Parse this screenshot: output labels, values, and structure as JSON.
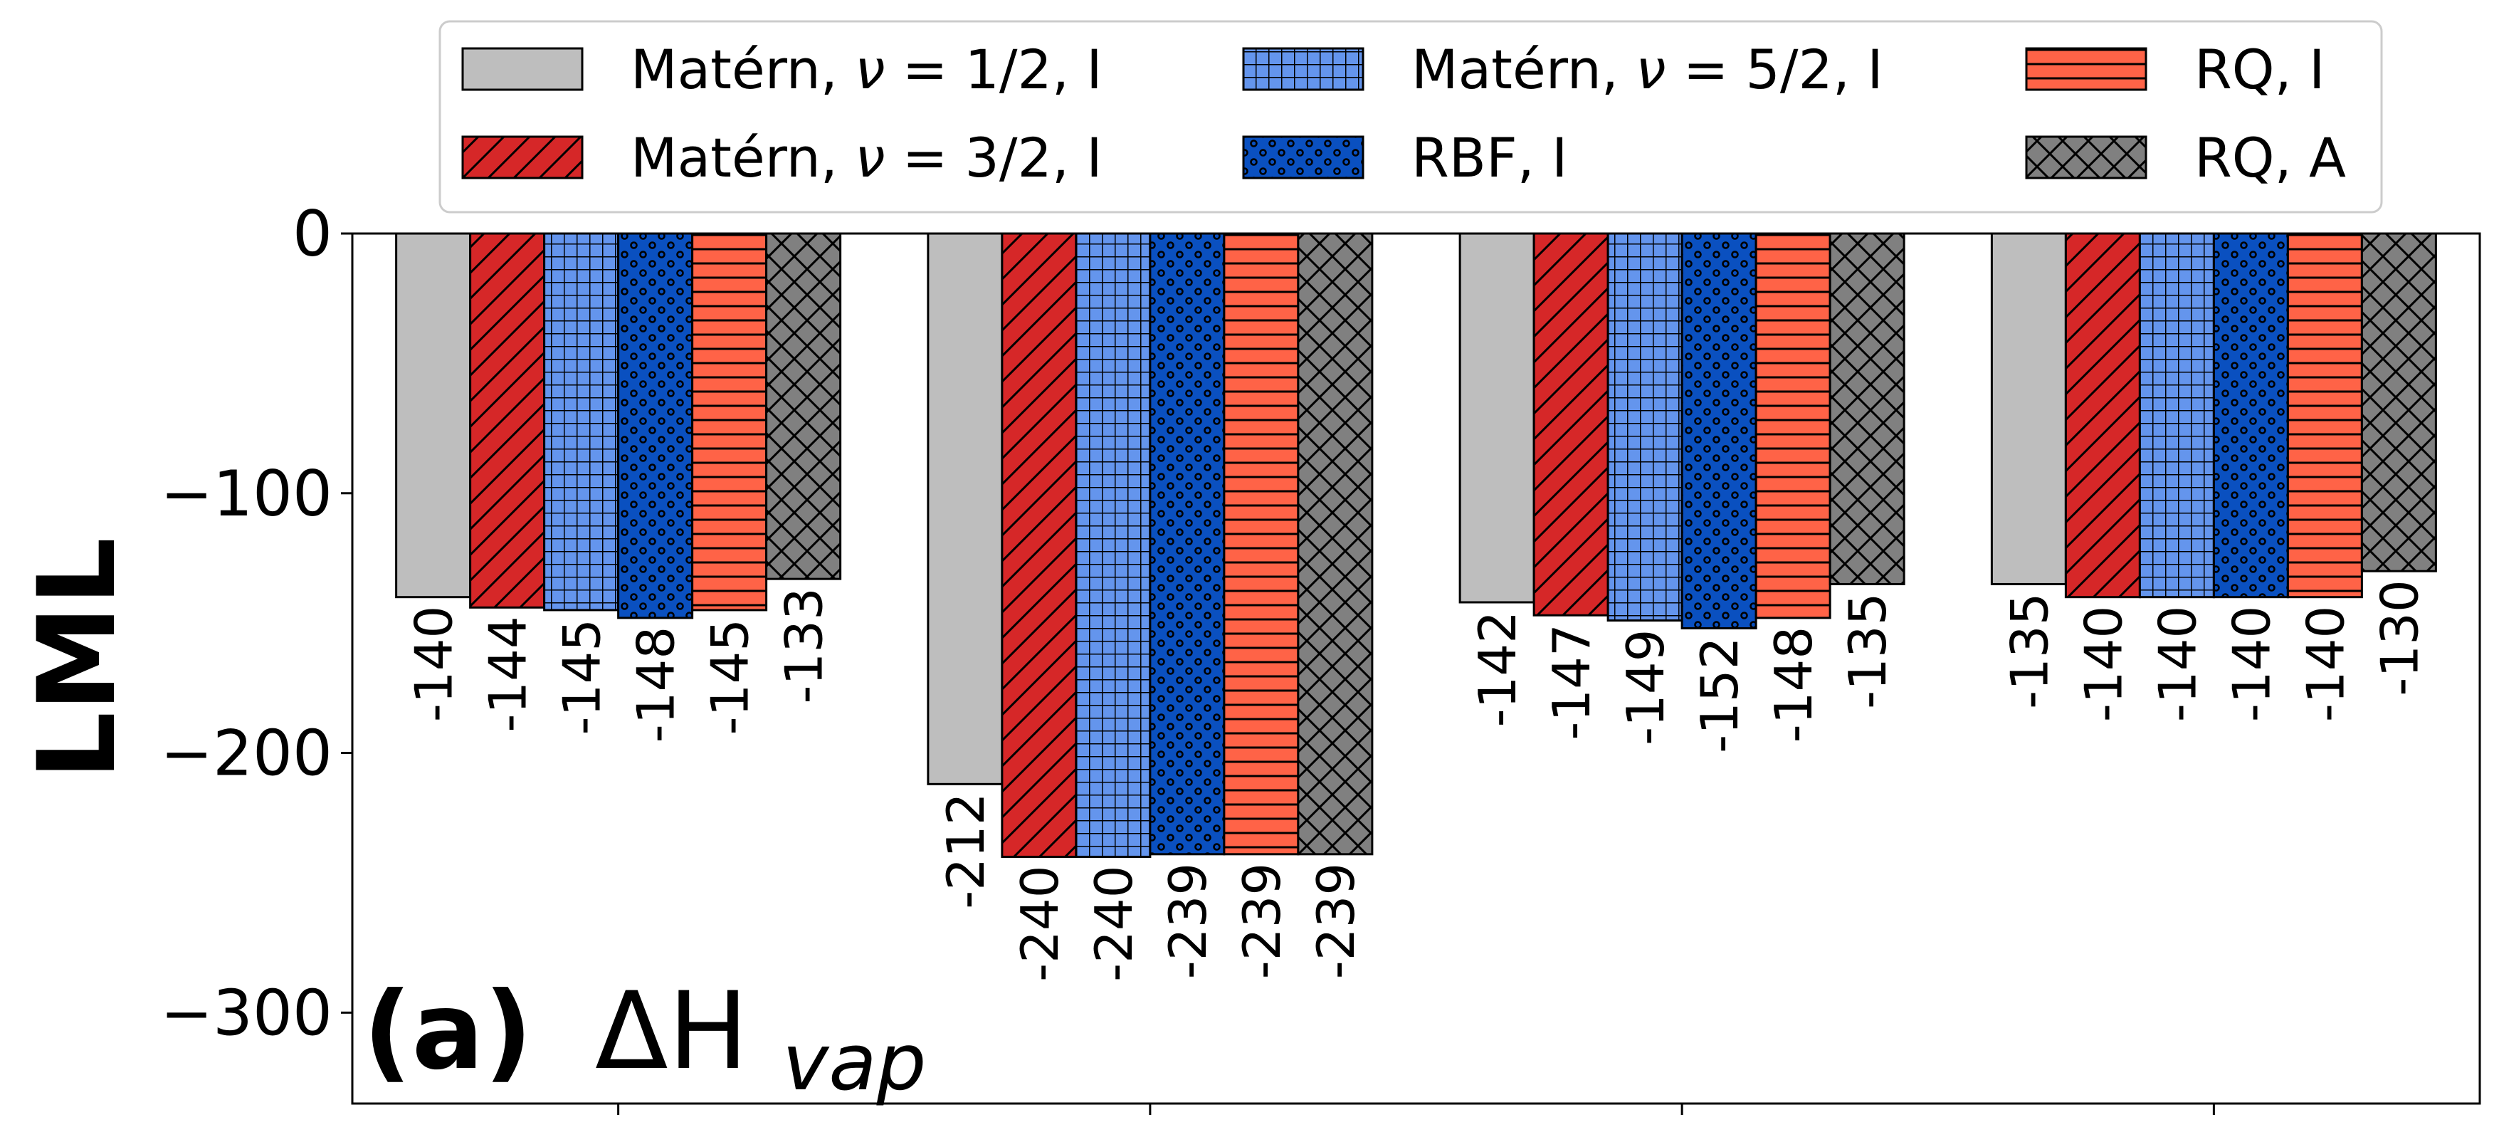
{
  "chart_data": {
    "type": "bar",
    "ylabel": "LML",
    "ylim": [
      -335,
      0
    ],
    "yticks": [
      0,
      -100,
      -200,
      -300
    ],
    "ytick_labels": [
      "0",
      "−100",
      "−200",
      "−300"
    ],
    "group_count": 4,
    "annotation": {
      "bold": "(a)",
      "symbol": "ΔH",
      "subscript": "vap"
    },
    "legend_placement": "top-center",
    "series": [
      {
        "legend": {
          "prefix": "Matérn, ",
          "italic": "ν",
          "suffix": " = 1/2, I"
        },
        "color": "#bebebe",
        "hatch": "none",
        "values": [
          -140,
          -212,
          -142,
          -135
        ],
        "labels": [
          "-140",
          "-212",
          "-142",
          "-135"
        ]
      },
      {
        "legend": {
          "prefix": "Matérn, ",
          "italic": "ν",
          "suffix": " = 3/2, I"
        },
        "color": "#d62728",
        "hatch": "diagonal",
        "values": [
          -144,
          -240,
          -147,
          -140
        ],
        "labels": [
          "-144",
          "-240",
          "-147",
          "-140"
        ]
      },
      {
        "legend": {
          "prefix": "Matérn, ",
          "italic": "ν",
          "suffix": " = 5/2, I"
        },
        "color": "#6495ed",
        "hatch": "grid",
        "values": [
          -145,
          -240,
          -149,
          -140
        ],
        "labels": [
          "-145",
          "-240",
          "-149",
          "-140"
        ]
      },
      {
        "legend": {
          "prefix": "RBF, I",
          "italic": "",
          "suffix": ""
        },
        "color": "#0a50c0",
        "hatch": "dots",
        "values": [
          -148,
          -239,
          -152,
          -140
        ],
        "labels": [
          "-148",
          "-239",
          "-152",
          "-140"
        ]
      },
      {
        "legend": {
          "prefix": "RQ, I",
          "italic": "",
          "suffix": ""
        },
        "color": "#ff6347",
        "hatch": "horizontal",
        "values": [
          -145,
          -239,
          -148,
          -140
        ],
        "labels": [
          "-145",
          "-239",
          "-148",
          "-140"
        ]
      },
      {
        "legend": {
          "prefix": "RQ, A",
          "italic": "",
          "suffix": ""
        },
        "color": "#808080",
        "hatch": "cross",
        "values": [
          -133,
          -239,
          -135,
          -130
        ],
        "labels": [
          "-133",
          "-239",
          "-135",
          "-130"
        ]
      }
    ]
  }
}
